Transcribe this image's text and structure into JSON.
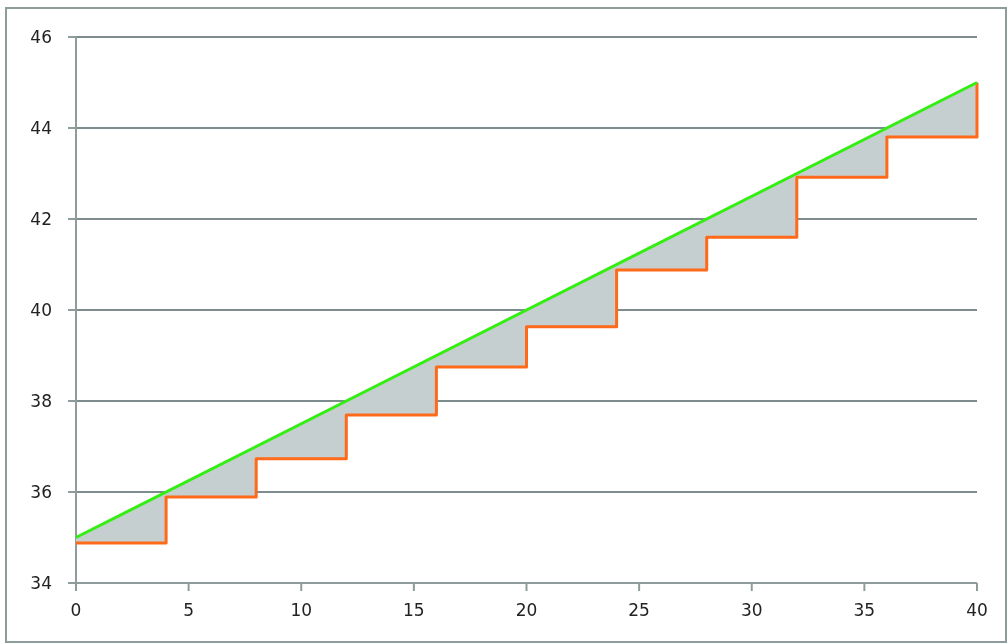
{
  "chart_data": {
    "type": "line",
    "xlim": [
      0,
      40
    ],
    "xticks": [
      0,
      5,
      10,
      15,
      20,
      25,
      30,
      35,
      40
    ],
    "ylim": [
      34,
      46
    ],
    "yticks": [
      34,
      36,
      38,
      40,
      42,
      44,
      46
    ],
    "grid": "y",
    "series": [
      {
        "type": "step",
        "color": "#ff6a1a",
        "x": [
          0,
          4,
          8,
          12,
          16,
          20,
          24,
          28,
          32,
          36,
          40
        ],
        "values": [
          34.88,
          35.89,
          36.73,
          37.69,
          38.75,
          39.63,
          40.88,
          41.6,
          42.92,
          43.8,
          45
        ],
        "lower": [
          34.88,
          35.89,
          36.73,
          37.69,
          38.75,
          39.63,
          40.88,
          41.6,
          42.92,
          43.8,
          45
        ],
        "upper": [
          35,
          36,
          37,
          38,
          39,
          40,
          41,
          42,
          43,
          44,
          45
        ]
      },
      {
        "color": "#33ee11",
        "x": [
          0,
          40
        ],
        "values": [
          35,
          45
        ]
      }
    ]
  }
}
